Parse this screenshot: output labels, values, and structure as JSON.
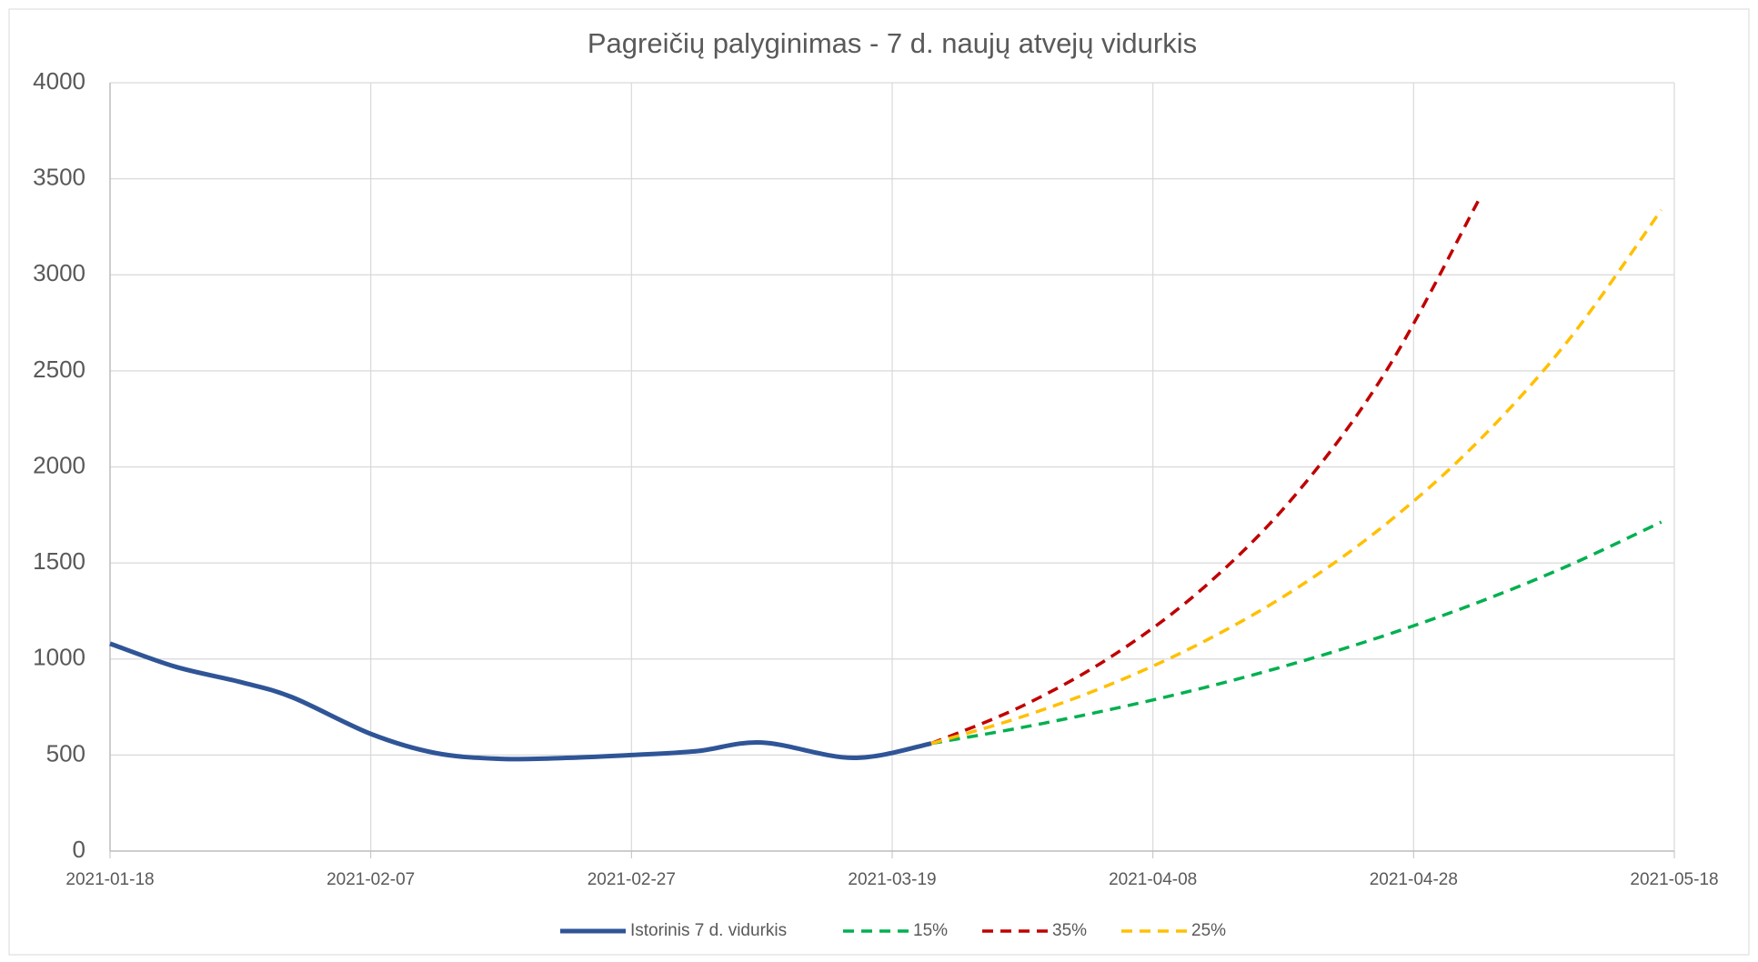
{
  "chart_data": {
    "type": "line",
    "title": "Pagreičių palyginimas - 7 d. naujų atvejų vidurkis",
    "xlim": [
      "2021-01-18",
      "2021-05-18"
    ],
    "xticks": [
      "2021-01-18",
      "2021-02-07",
      "2021-02-27",
      "2021-03-19",
      "2021-04-08",
      "2021-04-28",
      "2021-05-18"
    ],
    "ylim": [
      0,
      4000
    ],
    "yticks": [
      0,
      500,
      1000,
      1500,
      2000,
      2500,
      3000,
      3500,
      4000
    ],
    "grid": true,
    "legend": "bottom",
    "series": [
      {
        "name": "Istorinis 7 d. vidurkis",
        "color": "#2f5597",
        "style": "solid",
        "x": [
          "2021-01-18",
          "2021-01-23",
          "2021-01-28",
          "2021-02-01",
          "2021-02-07",
          "2021-02-12",
          "2021-02-17",
          "2021-02-22",
          "2021-02-27",
          "2021-03-04",
          "2021-03-09",
          "2021-03-16",
          "2021-03-22"
        ],
        "values": [
          1080,
          960,
          880,
          800,
          610,
          510,
          480,
          485,
          500,
          520,
          565,
          485,
          560
        ]
      },
      {
        "name": "15%",
        "color": "#00b050",
        "style": "dashed",
        "x": [
          "2021-03-22",
          "2021-03-29",
          "2021-04-05",
          "2021-04-12",
          "2021-04-19",
          "2021-04-26",
          "2021-05-03",
          "2021-05-10",
          "2021-05-17"
        ],
        "values": [
          560,
          644,
          741,
          852,
          980,
          1127,
          1296,
          1490,
          1713
        ]
      },
      {
        "name": "35%",
        "color": "#c00000",
        "style": "dashed",
        "x": [
          "2021-03-22",
          "2021-03-29",
          "2021-04-05",
          "2021-04-12",
          "2021-04-19",
          "2021-04-26",
          "2021-05-03"
        ],
        "values": [
          560,
          756,
          1021,
          1378,
          1860,
          2511,
          3390
        ]
      },
      {
        "name": "25%",
        "color": "#ffc000",
        "style": "dashed",
        "x": [
          "2021-03-22",
          "2021-03-29",
          "2021-04-05",
          "2021-04-12",
          "2021-04-19",
          "2021-04-26",
          "2021-05-03",
          "2021-05-10",
          "2021-05-17"
        ],
        "values": [
          560,
          700,
          875,
          1094,
          1367,
          1709,
          2136,
          2670,
          3338
        ]
      }
    ]
  }
}
